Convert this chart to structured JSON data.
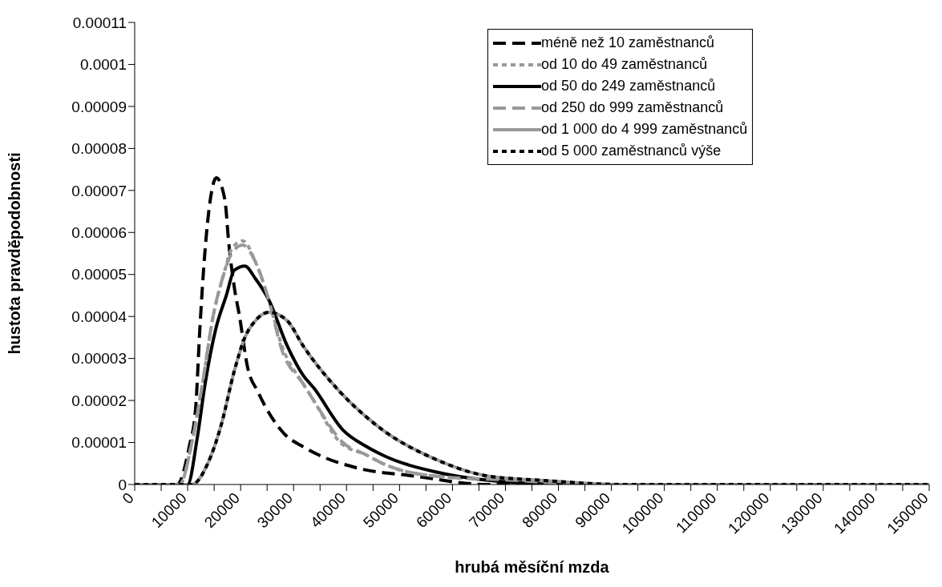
{
  "chart_data": {
    "type": "line",
    "xlabel": "hrubá měsíční mzda",
    "ylabel": "hustota pravděpodobnosti",
    "xlim": [
      0,
      150000
    ],
    "ylim": [
      0,
      0.00011
    ],
    "xticks": [
      0,
      {
        "value": 5000,
        "label": null
      },
      10000,
      {
        "value": 15000,
        "label": null
      },
      20000,
      {
        "value": 25000,
        "label": null
      },
      30000,
      {
        "value": 35000,
        "label": null
      },
      40000,
      {
        "value": 45000,
        "label": null
      },
      50000,
      {
        "value": 55000,
        "label": null
      },
      60000,
      {
        "value": 65000,
        "label": null
      },
      70000,
      {
        "value": 75000,
        "label": null
      },
      80000,
      {
        "value": 85000,
        "label": null
      },
      90000,
      {
        "value": 95000,
        "label": null
      },
      100000,
      {
        "value": 105000,
        "label": null
      },
      110000,
      {
        "value": 115000,
        "label": null
      },
      120000,
      {
        "value": 125000,
        "label": null
      },
      130000,
      {
        "value": 135000,
        "label": null
      },
      140000,
      {
        "value": 145000,
        "label": null
      },
      150000
    ],
    "yticks": [
      0,
      {
        "value": 1e-05,
        "label": "0.00001"
      },
      {
        "value": 2e-05,
        "label": "0.00002"
      },
      {
        "value": 3e-05,
        "label": "0.00003"
      },
      {
        "value": 4e-05,
        "label": "0.00004"
      },
      {
        "value": 5e-05,
        "label": "0.00005"
      },
      {
        "value": 6e-05,
        "label": "0.00006"
      },
      {
        "value": 7e-05,
        "label": "0.00007"
      },
      {
        "value": 8e-05,
        "label": "0.00008"
      },
      {
        "value": 9e-05,
        "label": "0.00009"
      },
      0.0001,
      0.00011
    ],
    "grid": false,
    "legend": "top right",
    "series": [
      {
        "name": "méně než 10 zaměstnanců",
        "color": "#000000",
        "line_style": "dashed",
        "x": [
          0,
          8000,
          10300,
          11500,
          12300,
          13300,
          14300,
          15400,
          17000,
          17800,
          18800,
          19800,
          21300,
          23300,
          28300,
          31800,
          34800,
          41800,
          52800,
          66700,
          80000,
          150000
        ],
        "values": [
          0,
          0,
          9e-06,
          1.8e-05,
          3.7e-05,
          5.6e-05,
          6.8e-05,
          7.3e-05,
          6.8e-05,
          5.7e-05,
          4.7e-05,
          4e-05,
          2.8e-05,
          2.2e-05,
          1.2e-05,
          9e-06,
          7e-06,
          4e-06,
          2e-06,
          0,
          0,
          0
        ]
      },
      {
        "name": "od 10 do 49 zaměstnanců",
        "color": "#999999",
        "line_style": "dotted",
        "x": [
          0,
          8500,
          10800,
          12800,
          14800,
          16800,
          18300,
          20400,
          22800,
          25300,
          27800,
          31800,
          33800,
          38800,
          43800,
          46800,
          56800,
          71700,
          85000,
          150000
        ],
        "values": [
          0,
          0,
          1e-05,
          2.4e-05,
          4e-05,
          5e-05,
          5.6e-05,
          5.8e-05,
          5.3e-05,
          4.4e-05,
          3.3e-05,
          2.4e-05,
          2e-05,
          1e-05,
          7e-06,
          5e-06,
          2e-06,
          1e-06,
          0,
          0
        ]
      },
      {
        "name": "od 50 do 249 zaměstnanců",
        "color": "#000000",
        "line_style": "solid",
        "x": [
          0,
          8500,
          10000,
          11800,
          13300,
          15300,
          17300,
          18800,
          20800,
          22800,
          25300,
          28800,
          31800,
          33800,
          39300,
          43800,
          46800,
          56800,
          66700,
          81700,
          150000
        ],
        "values": [
          0,
          0,
          0,
          1.1e-05,
          2.4e-05,
          3.7e-05,
          4.5e-05,
          5.1e-05,
          5.2e-05,
          4.9e-05,
          4.4e-05,
          3.3e-05,
          2.6e-05,
          2.3e-05,
          1.3e-05,
          9e-06,
          7e-06,
          3e-06,
          1e-06,
          0,
          0
        ]
      },
      {
        "name": "od 250 do 999 zaměstnanců",
        "color": "#999999",
        "line_style": "dashed",
        "x": [
          0,
          8500,
          10800,
          12800,
          14800,
          16800,
          18300,
          20400,
          22800,
          25300,
          27800,
          31800,
          33800,
          39300,
          43800,
          46800,
          56800,
          71700,
          85000,
          150000
        ],
        "values": [
          0,
          0,
          1e-05,
          2.4e-05,
          4e-05,
          5e-05,
          5.5e-05,
          5.7e-05,
          5.3e-05,
          4.4e-05,
          3.2e-05,
          2.4e-05,
          2e-05,
          1e-05,
          7e-06,
          5e-06,
          2e-06,
          1e-06,
          0,
          0
        ]
      },
      {
        "name": "od 1 000 do 4 999 zaměstnanců",
        "color": "#999999",
        "line_style": "solid",
        "x": [
          0,
          8500,
          10800,
          13800,
          16300,
          18800,
          20800,
          22800,
          25300,
          28800,
          31800,
          38800,
          43800,
          46800,
          56800,
          66700,
          76700,
          91700,
          110000,
          150000
        ],
        "values": [
          0,
          0,
          0,
          5e-06,
          1.4e-05,
          2.7e-05,
          3.5e-05,
          3.9e-05,
          4.1e-05,
          3.9e-05,
          3.3e-05,
          2.2e-05,
          1.6e-05,
          1.3e-05,
          6e-06,
          2e-06,
          1e-06,
          0,
          0,
          0
        ]
      },
      {
        "name": "od 5 000 zaměstnanců výše",
        "color": "#000000",
        "line_style": "dotted",
        "x": [
          0,
          8500,
          10800,
          13800,
          16300,
          18800,
          20800,
          22800,
          25300,
          28800,
          31800,
          38800,
          43800,
          46800,
          56800,
          66700,
          76700,
          91700,
          110000,
          150000
        ],
        "values": [
          0,
          0,
          0,
          5e-06,
          1.4e-05,
          2.7e-05,
          3.5e-05,
          3.9e-05,
          4.1e-05,
          3.9e-05,
          3.3e-05,
          2.2e-05,
          1.6e-05,
          1.3e-05,
          6e-06,
          2e-06,
          1e-06,
          0,
          0,
          0
        ]
      }
    ]
  }
}
